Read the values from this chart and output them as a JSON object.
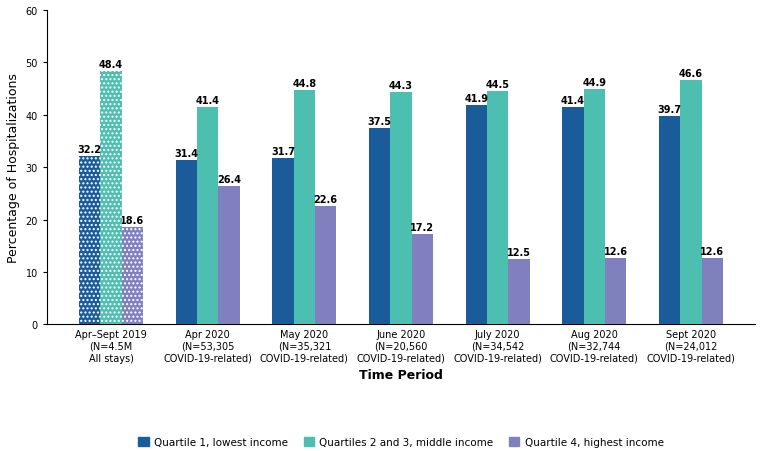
{
  "categories": [
    "Apr–Sept 2019\n(N=4.5M\nAll stays)",
    "Apr 2020\n(N=53,305\nCOVID-19-related)",
    "May 2020\n(N=35,321\nCOVID-19-related)",
    "June 2020\n(N=20,560\nCOVID-19-related)",
    "July 2020\n(N=34,542\nCOVID-19-related)",
    "Aug 2020\n(N=32,744\nCOVID-19-related)",
    "Sept 2020\n(N=24,012\nCOVID-19-related)"
  ],
  "q1_values": [
    32.2,
    31.4,
    31.7,
    37.5,
    41.9,
    41.4,
    39.7
  ],
  "q23_values": [
    48.4,
    41.4,
    44.8,
    44.3,
    44.5,
    44.9,
    46.6
  ],
  "q4_values": [
    18.6,
    26.4,
    22.6,
    17.2,
    12.5,
    12.6,
    12.6
  ],
  "q1_color": "#1a5c99",
  "q23_color": "#4dbfb0",
  "q4_color": "#8080bf",
  "ylabel": "Percentage of Hospitalizations",
  "xlabel": "Time Period",
  "ylim": [
    0,
    60
  ],
  "yticks": [
    0,
    10,
    20,
    30,
    40,
    50,
    60
  ],
  "legend_labels": [
    "Quartile 1, lowest income",
    "Quartiles 2 and 3, middle income",
    "Quartile 4, highest income"
  ],
  "bar_width": 0.22,
  "figsize": [
    7.62,
    4.52
  ],
  "dpi": 100,
  "label_fontsize": 7.0,
  "axis_fontsize": 9.0,
  "tick_fontsize": 7.0,
  "legend_fontsize": 7.5
}
